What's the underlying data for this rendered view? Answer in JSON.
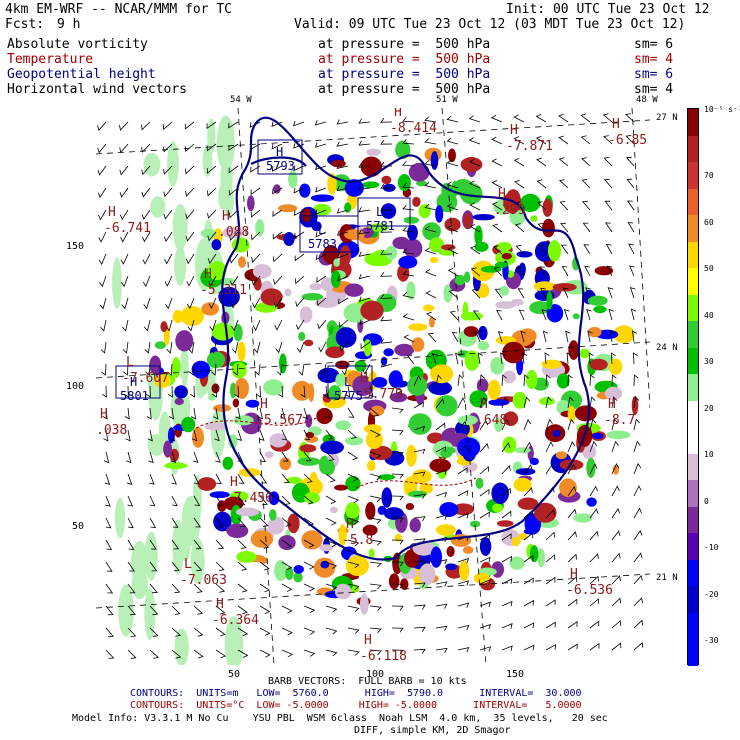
{
  "header": {
    "model": "4km EM-WRF -- NCAR/MMM for TC",
    "init": "Init: 00 UTC Tue 23 Oct 12",
    "fcst_label": "Fcst:",
    "fcst_value": "9 h",
    "valid": "Valid: 09 UTC Tue 23 Oct 12 (03 MDT Tue 23 Oct 12)"
  },
  "fields": [
    {
      "name": "Absolute vorticity",
      "level": "at pressure =  500 hPa",
      "sm": "sm= 6",
      "color": "#000000"
    },
    {
      "name": "Temperature",
      "level": "at pressure =  500 hPa",
      "sm": "sm= 4",
      "color": "#a00000"
    },
    {
      "name": "Geopotential height",
      "level": "at pressure =  500 hPa",
      "sm": "sm= 6",
      "color": "#000080"
    },
    {
      "name": "Horizontal wind vectors",
      "level": "at pressure =  500 hPa",
      "sm": "sm= 4",
      "color": "#000000"
    }
  ],
  "map": {
    "lon_labels": [
      "54 W",
      "51 W",
      "48 W"
    ],
    "lat_labels": [
      "27 N",
      "24 N",
      "21 N"
    ],
    "x_ticks": [
      "50",
      "100",
      "150"
    ],
    "y_ticks": [
      "150",
      "100",
      "50"
    ],
    "highs_lows": [
      {
        "letter": "H",
        "value": "-6.741"
      },
      {
        "letter": "H",
        "value": "-5.311"
      },
      {
        "letter": "H",
        "value": "-5.567"
      },
      {
        "letter": "H",
        "value": "-7.456"
      },
      {
        "letter": "L",
        "value": "-7.063"
      },
      {
        "letter": "H",
        "value": "-6.364"
      },
      {
        "letter": "H",
        "value": "-6.536"
      },
      {
        "letter": "H",
        "value": "-7.871"
      },
      {
        "letter": "H",
        "value": "-6.85"
      },
      {
        "letter": "H",
        "value": "-8.414"
      },
      {
        "letter": "H",
        "value": ".299"
      },
      {
        "letter": "L",
        "value": "-7.607"
      },
      {
        "letter": "H",
        "value": ".038"
      },
      {
        "letter": "H",
        "value": ".648"
      },
      {
        "letter": "H",
        "value": "-8.7"
      },
      {
        "letter": "H",
        "value": "-5.8"
      },
      {
        "letter": "H",
        "value": "-6.118"
      },
      {
        "letter": "H",
        "value": ".088"
      },
      {
        "letter": "H",
        "value": "-5.779"
      }
    ],
    "geopotential_labels": [
      {
        "letter": "H",
        "value": "5793"
      },
      {
        "letter": "L",
        "value": "5783"
      },
      {
        "letter": "L",
        "value": "5781"
      },
      {
        "letter": "H",
        "value": "5801"
      },
      {
        "letter": "L",
        "value": "5775"
      }
    ]
  },
  "colorbar": {
    "unit": "10⁻⁵ s⁻¹",
    "labels": [
      "70",
      "60",
      "50",
      "40",
      "30",
      "20",
      "10",
      "0",
      "-10",
      "-20",
      "-30"
    ],
    "colors": [
      "#8b0000",
      "#b22222",
      "#cc3333",
      "#e8602c",
      "#f08c28",
      "#ffd700",
      "#ffff00",
      "#7cfc00",
      "#32cd32",
      "#00c000",
      "#90ee90",
      "#ffffff",
      "#ffffff",
      "#d8bfd8",
      "#b070c0",
      "#7b2a9a",
      "#5a00b4",
      "#0000ff",
      "#0000cd",
      "#0000ff",
      "#0000ff"
    ]
  },
  "footer": {
    "barb": "BARB VECTORS:  FULL BARB = 10 kts",
    "contours1": "CONTOURS:  UNITS=m   LOW=  5760.0      HIGH=  5790.0      INTERVAL=  30.000",
    "contours2": "CONTOURS:  UNITS=°C  LOW= -5.0000     HIGH= -5.0000      INTERVAL=   5.0000",
    "model_info": "Model Info: V3.3.1 M No Cu    YSU PBL  WSM 6class  Noah LSM  4.0 km,  35 levels,   20 sec",
    "diff": "DIFF, simple KM, 2D Smagor"
  }
}
